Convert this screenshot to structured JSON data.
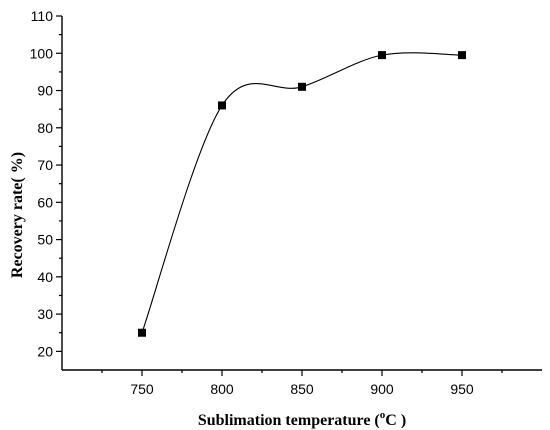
{
  "chart_data": {
    "type": "line",
    "x": [
      750,
      800,
      850,
      900,
      950
    ],
    "series": [
      {
        "values": [
          25,
          86,
          91,
          99.5,
          99.5
        ]
      }
    ],
    "x_ticks": [
      "750",
      "800",
      "850",
      "900",
      "950"
    ],
    "y_ticks": [
      "20",
      "30",
      "40",
      "50",
      "60",
      "70",
      "80",
      "90",
      "100",
      "110"
    ],
    "xlabel": "Sublimation temperature (",
    "xlabel_sup": "o",
    "xlabel_unit": "C )",
    "ylabel": "Recovery rate(  %)",
    "xlim": [
      700,
      1000
    ],
    "ylim": [
      15,
      110
    ],
    "grid": false,
    "marker": "square",
    "smooth": true,
    "colors": {
      "line": "#000000",
      "marker": "#000000"
    }
  }
}
